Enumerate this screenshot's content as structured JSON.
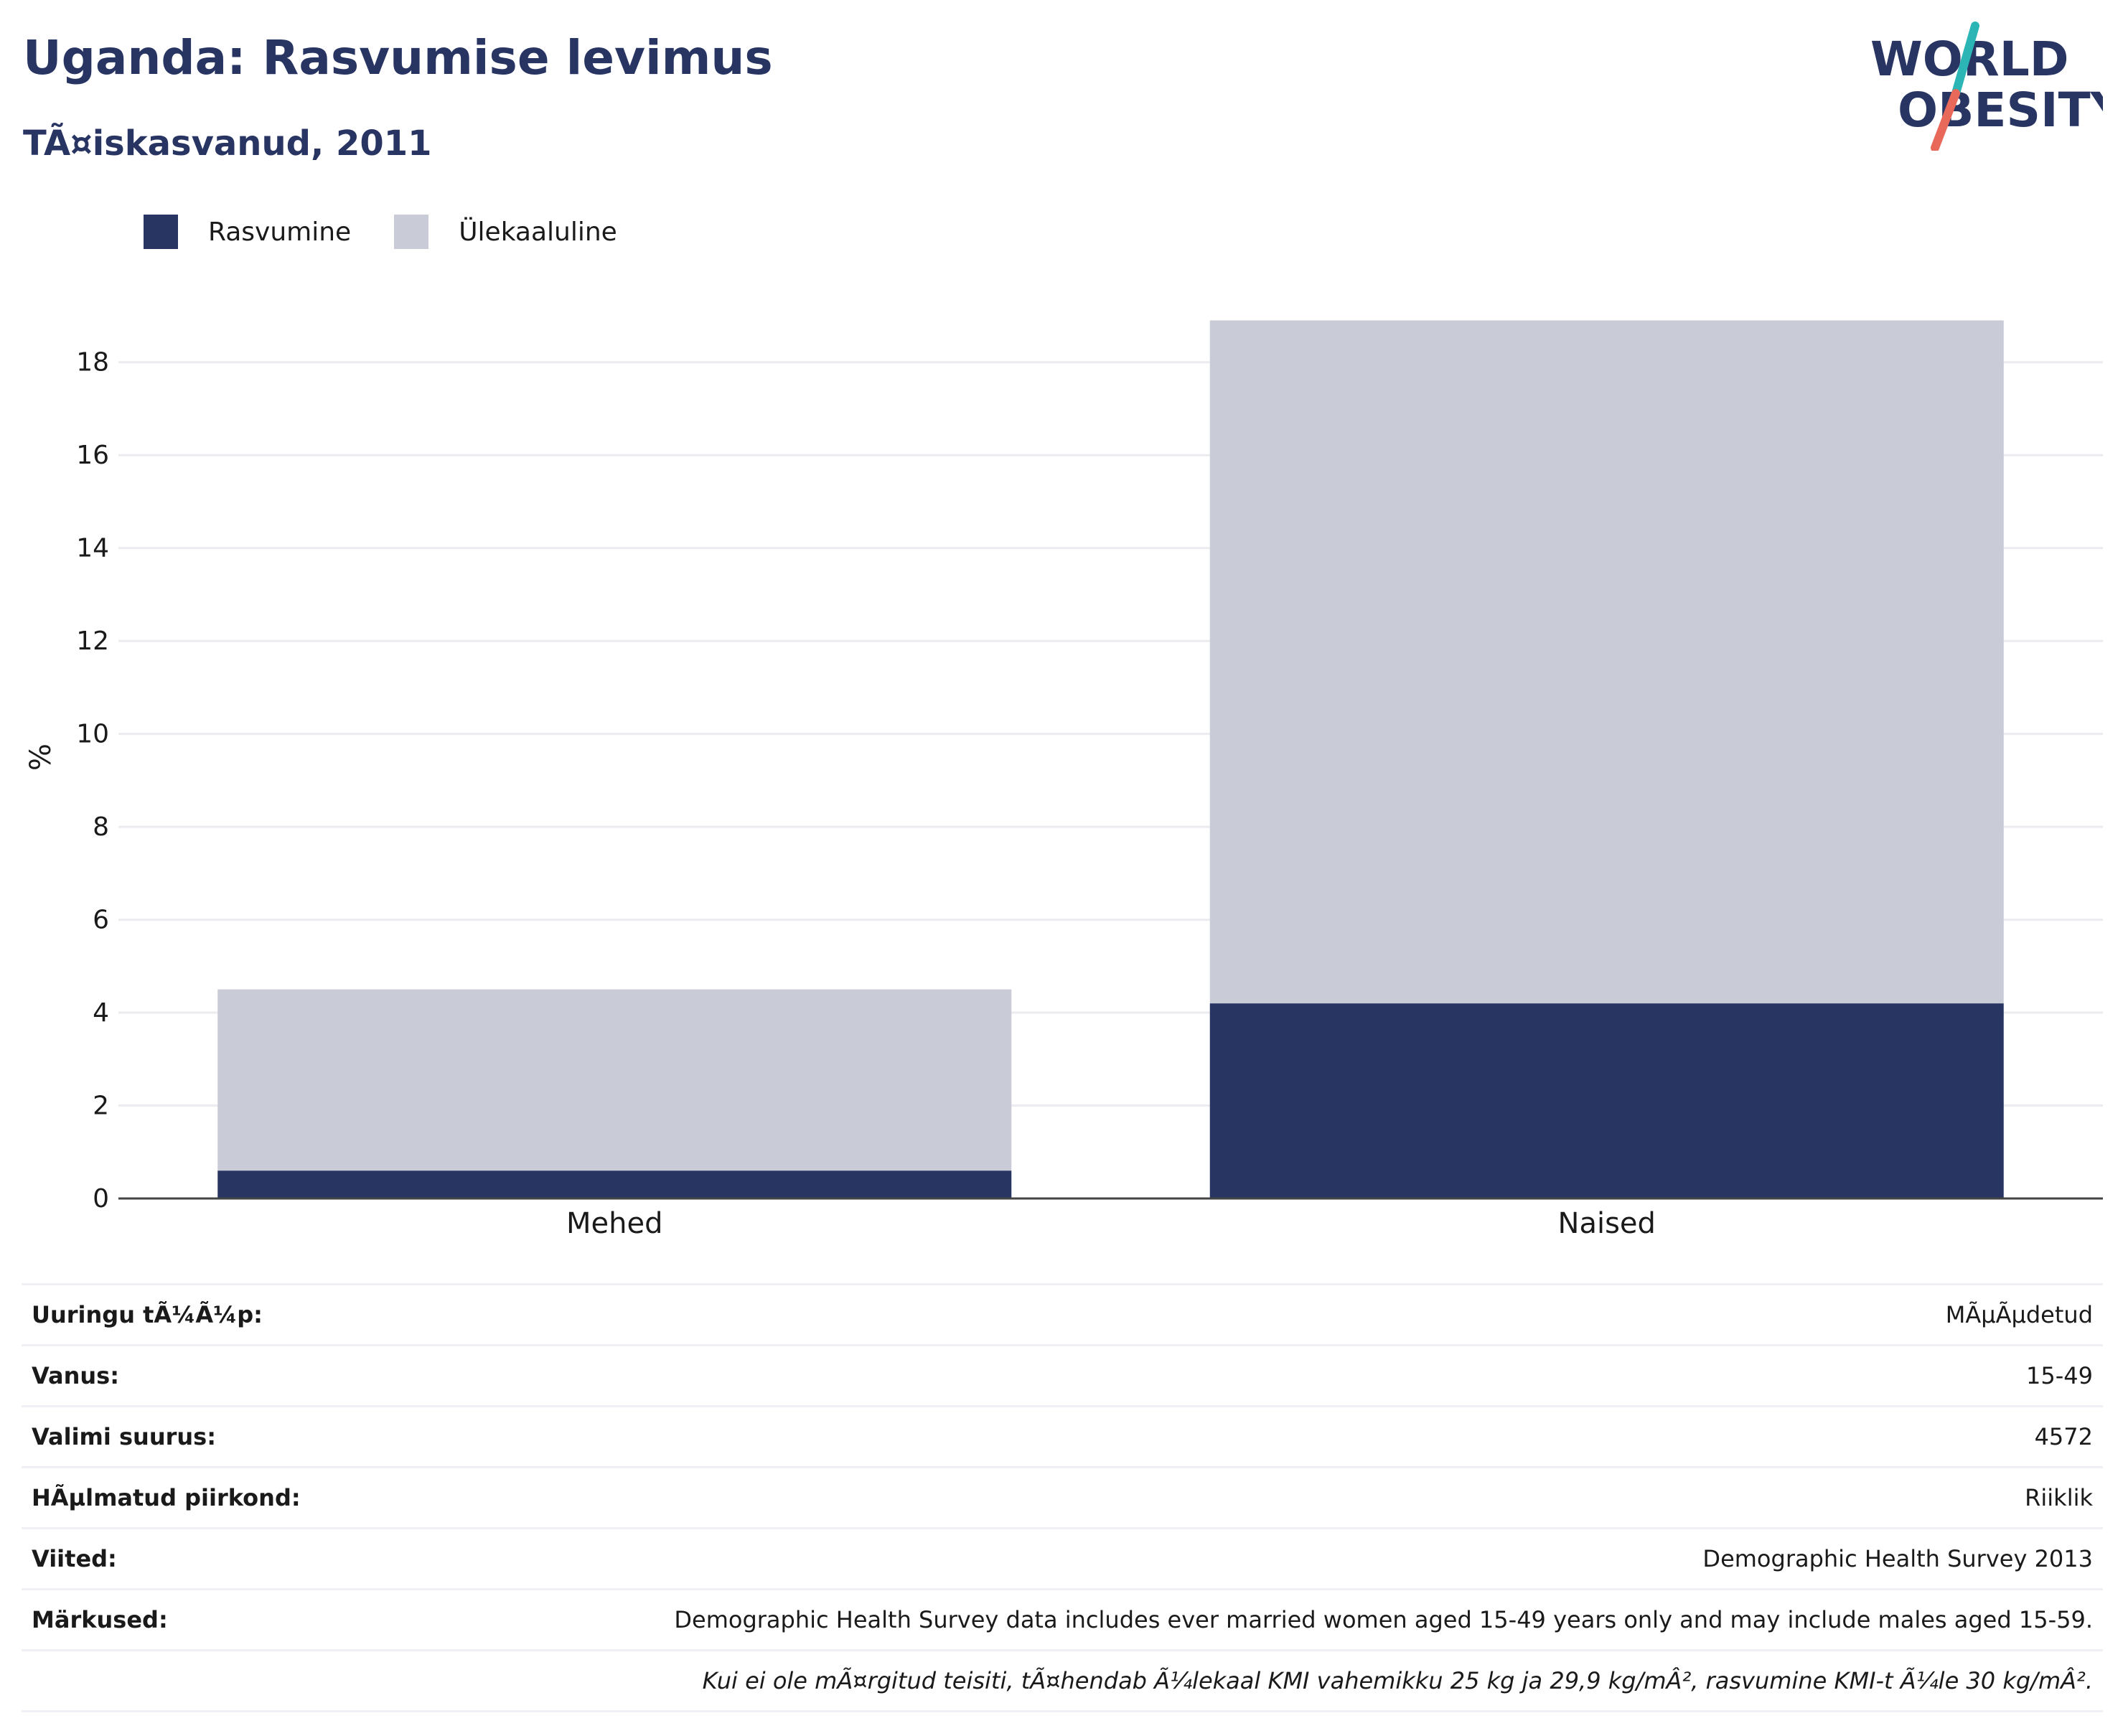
{
  "title": "Uganda: Rasvumise levimus",
  "subtitle": "TÃ¤iskasvanud, 2011",
  "logo": {
    "line1": "WORLD",
    "line2": "OBESITY",
    "colors": {
      "navy": "#283563",
      "teal": "#2bb5b5",
      "coral": "#e8695a"
    }
  },
  "legend": [
    {
      "label": "Rasvumine",
      "color": "#283563"
    },
    {
      "label": "Ülekaaluline",
      "color": "#c9cbd6"
    }
  ],
  "chart_data": {
    "type": "bar",
    "stacked": true,
    "categories": [
      "Mehed",
      "Naised"
    ],
    "series": [
      {
        "name": "Rasvumine",
        "color": "#283563",
        "values": [
          0.6,
          4.2
        ]
      },
      {
        "name": "Ülekaaluline",
        "color": "#c9cbd6",
        "values": [
          3.9,
          14.7
        ]
      }
    ],
    "ylabel": "%",
    "ylim": [
      0,
      19
    ],
    "yticks": [
      0,
      2,
      4,
      6,
      8,
      10,
      12,
      14,
      16,
      18
    ],
    "grid": true,
    "legend_position": "top-left"
  },
  "info": [
    {
      "key": "Uuringu tÃ¼Ã¼p:",
      "value": "MÃµÃµdetud"
    },
    {
      "key": "Vanus:",
      "value": "15-49"
    },
    {
      "key": "Valimi suurus:",
      "value": "4572"
    },
    {
      "key": "HÃµlmatud piirkond:",
      "value": "Riiklik"
    },
    {
      "key": "Viited:",
      "value": "Demographic Health Survey 2013"
    },
    {
      "key": "Märkused:",
      "value": "Demographic Health Survey data includes ever married women aged 15-49 years only and may include males aged 15-59."
    }
  ],
  "footnote": "Kui ei ole mÃ¤rgitud teisiti, tÃ¤hendab Ã¼lekaal KMI vahemikku 25 kg ja 29,9 kg/mÂ², rasvumine KMI-t Ã¼le 30 kg/mÂ²."
}
